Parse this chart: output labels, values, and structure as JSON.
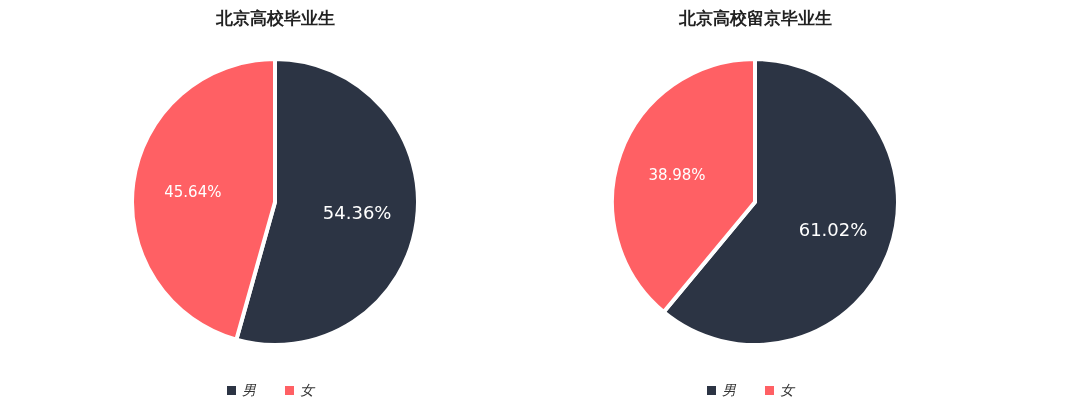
{
  "chart_data": [
    {
      "type": "pie",
      "title": "北京高校毕业生",
      "categories": [
        "男",
        "女"
      ],
      "values": [
        54.36,
        45.64
      ],
      "colors": [
        "#2c3444",
        "#ff6064"
      ],
      "value_labels": [
        "54.36%",
        "45.64%"
      ],
      "legend": "bottom"
    },
    {
      "type": "pie",
      "title": "北京高校留京毕业生",
      "categories": [
        "男",
        "女"
      ],
      "values": [
        61.02,
        38.98
      ],
      "colors": [
        "#2c3444",
        "#ff6064"
      ],
      "value_labels": [
        "61.02%",
        "38.98%"
      ],
      "legend": "bottom"
    }
  ]
}
